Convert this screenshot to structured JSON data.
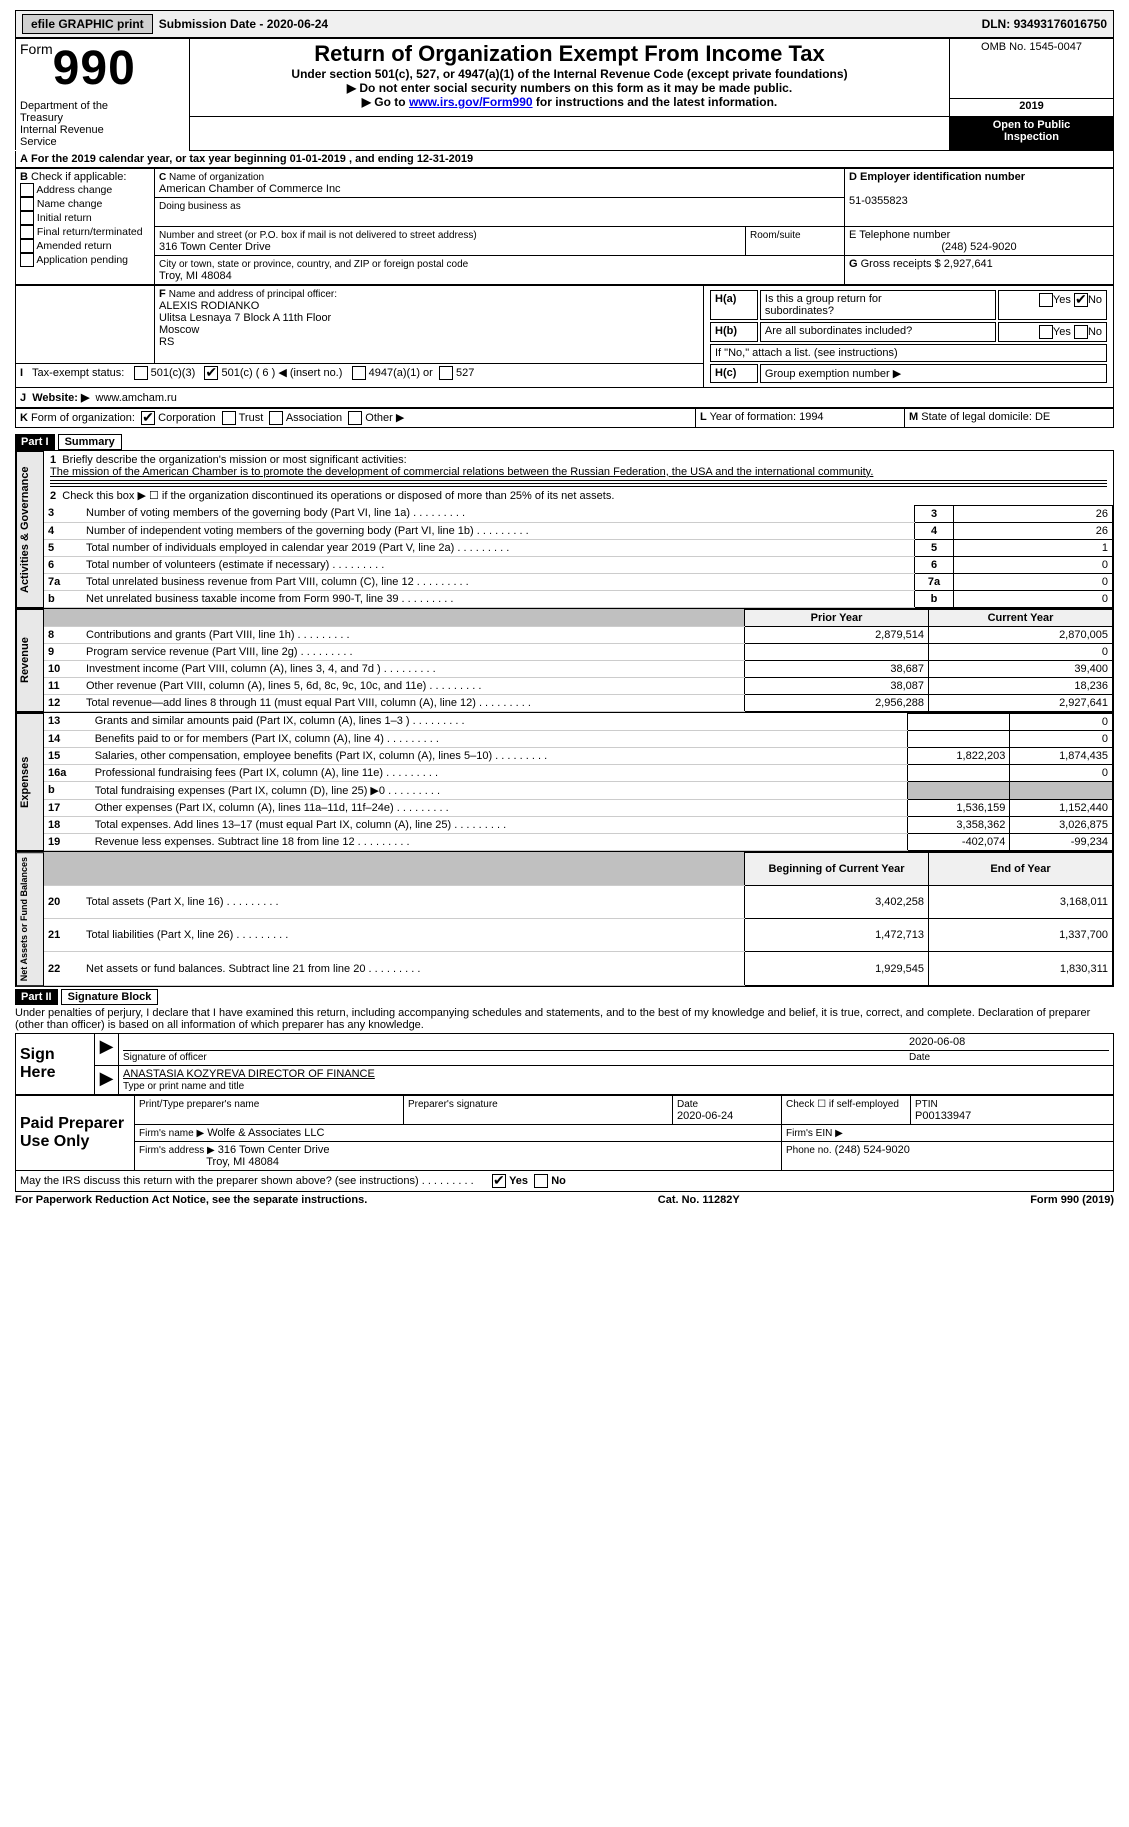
{
  "topbar": {
    "efile": "efile GRAPHIC print",
    "submission_label": "Submission Date - ",
    "submission_date": "2020-06-24",
    "dln_label": "DLN: ",
    "dln": "93493176016750"
  },
  "header": {
    "form_word": "Form",
    "form_no": "990",
    "dept1": "Department of the",
    "dept2": "Treasury",
    "dept3": "Internal Revenue",
    "dept4": "Service",
    "title": "Return of Organization Exempt From Income Tax",
    "subtitle": "Under section 501(c), 527, or 4947(a)(1) of the Internal Revenue Code (except private foundations)",
    "line1": "Do not enter social security numbers on this form as it may be made public.",
    "line2_pre": "Go to ",
    "line2_link": "www.irs.gov/Form990",
    "line2_post": " for instructions and the latest information.",
    "omb": "OMB No. 1545-0047",
    "year": "2019",
    "open1": "Open to Public",
    "open2": "Inspection"
  },
  "periodA": {
    "pre": "For the 2019 calendar year, or tax year beginning ",
    "begin": "01-01-2019",
    "mid": " , and ending ",
    "end": "12-31-2019"
  },
  "boxB": {
    "label": "Check if applicable:",
    "items": [
      "Address change",
      "Name change",
      "Initial return",
      "Final return/terminated",
      "Amended return",
      "Application pending"
    ]
  },
  "boxC": {
    "name_label": "Name of organization",
    "name": "American Chamber of Commerce Inc",
    "dba_label": "Doing business as",
    "street_label": "Number and street (or P.O. box if mail is not delivered to street address)",
    "street": "316 Town Center Drive",
    "room_label": "Room/suite",
    "city_label": "City or town, state or province, country, and ZIP or foreign postal code",
    "city": "Troy, MI  48084"
  },
  "boxD": {
    "label": "Employer identification number",
    "value": "51-0355823"
  },
  "boxE": {
    "label": "E Telephone number",
    "value": "(248) 524-9020"
  },
  "boxG": {
    "label": "Gross receipts $",
    "value": "2,927,641"
  },
  "boxF": {
    "label": "Name and address of principal officer:",
    "l1": "ALEXIS RODIANKO",
    "l2": "Ulitsa Lesnaya 7 Block A 11th Floor",
    "l3": "Moscow",
    "l4": "RS"
  },
  "boxH": {
    "a": "Is this a group return for",
    "a2": "subordinates?",
    "b": "Are all subordinates included?",
    "note": "If \"No,\" attach a list. (see instructions)",
    "c": "Group exemption number ▶"
  },
  "boxI": {
    "label": "Tax-exempt status:",
    "o1": "501(c)(3)",
    "o2": "501(c) ( 6 ) ◀ (insert no.)",
    "o3": "4947(a)(1) or",
    "o4": "527"
  },
  "boxJ": {
    "label": "Website: ▶",
    "value": "www.amcham.ru"
  },
  "boxK": {
    "label": "Form of organization:",
    "o1": "Corporation",
    "o2": "Trust",
    "o3": "Association",
    "o4": "Other ▶"
  },
  "boxL": {
    "label": "Year of formation:",
    "value": "1994"
  },
  "boxM": {
    "label": "State of legal domicile:",
    "value": "DE"
  },
  "part1": {
    "bar": "Part I",
    "title": "Summary",
    "l1": "Briefly describe the organization's mission or most significant activities:",
    "mission": "The mission of the American Chamber is to promote the development of commercial relations between the Russian Federation, the USA and the international community.",
    "l2": "Check this box ▶ ☐  if the organization discontinued its operations or disposed of more than 25% of its net assets.",
    "rows_top": [
      {
        "n": "3",
        "t": "Number of voting members of the governing body (Part VI, line 1a)",
        "v": "26"
      },
      {
        "n": "4",
        "t": "Number of independent voting members of the governing body (Part VI, line 1b)",
        "v": "26"
      },
      {
        "n": "5",
        "t": "Total number of individuals employed in calendar year 2019 (Part V, line 2a)",
        "v": "1"
      },
      {
        "n": "6",
        "t": "Total number of volunteers (estimate if necessary)",
        "v": "0"
      },
      {
        "n": "7a",
        "t": "Total unrelated business revenue from Part VIII, column (C), line 12",
        "v": "0"
      },
      {
        "n": "b",
        "t": "Net unrelated business taxable income from Form 990-T, line 39",
        "v": "0"
      }
    ],
    "col_prior": "Prior Year",
    "col_curr": "Current Year",
    "col_begin": "Beginning of Current Year",
    "col_end": "End of Year",
    "sideA": "Activities & Governance",
    "sideR": "Revenue",
    "sideE": "Expenses",
    "sideN": "Net Assets or Fund Balances",
    "revenue": [
      {
        "n": "8",
        "t": "Contributions and grants (Part VIII, line 1h)",
        "p": "2,879,514",
        "c": "2,870,005"
      },
      {
        "n": "9",
        "t": "Program service revenue (Part VIII, line 2g)",
        "p": "",
        "c": "0"
      },
      {
        "n": "10",
        "t": "Investment income (Part VIII, column (A), lines 3, 4, and 7d )",
        "p": "38,687",
        "c": "39,400"
      },
      {
        "n": "11",
        "t": "Other revenue (Part VIII, column (A), lines 5, 6d, 8c, 9c, 10c, and 11e)",
        "p": "38,087",
        "c": "18,236"
      },
      {
        "n": "12",
        "t": "Total revenue—add lines 8 through 11 (must equal Part VIII, column (A), line 12)",
        "p": "2,956,288",
        "c": "2,927,641"
      }
    ],
    "expenses": [
      {
        "n": "13",
        "t": "Grants and similar amounts paid (Part IX, column (A), lines 1–3 )",
        "p": "",
        "c": "0"
      },
      {
        "n": "14",
        "t": "Benefits paid to or for members (Part IX, column (A), line 4)",
        "p": "",
        "c": "0"
      },
      {
        "n": "15",
        "t": "Salaries, other compensation, employee benefits (Part IX, column (A), lines 5–10)",
        "p": "1,822,203",
        "c": "1,874,435"
      },
      {
        "n": "16a",
        "t": "Professional fundraising fees (Part IX, column (A), line 11e)",
        "p": "",
        "c": "0"
      },
      {
        "n": "b",
        "t": "Total fundraising expenses (Part IX, column (D), line 25) ▶0",
        "p": "GREY",
        "c": "GREY"
      },
      {
        "n": "17",
        "t": "Other expenses (Part IX, column (A), lines 11a–11d, 11f–24e)",
        "p": "1,536,159",
        "c": "1,152,440"
      },
      {
        "n": "18",
        "t": "Total expenses. Add lines 13–17 (must equal Part IX, column (A), line 25)",
        "p": "3,358,362",
        "c": "3,026,875"
      },
      {
        "n": "19",
        "t": "Revenue less expenses. Subtract line 18 from line 12",
        "p": "-402,074",
        "c": "-99,234"
      }
    ],
    "netassets": [
      {
        "n": "20",
        "t": "Total assets (Part X, line 16)",
        "p": "3,402,258",
        "c": "3,168,011"
      },
      {
        "n": "21",
        "t": "Total liabilities (Part X, line 26)",
        "p": "1,472,713",
        "c": "1,337,700"
      },
      {
        "n": "22",
        "t": "Net assets or fund balances. Subtract line 21 from line 20",
        "p": "1,929,545",
        "c": "1,830,311"
      }
    ]
  },
  "part2": {
    "bar": "Part II",
    "title": "Signature Block",
    "decl": "Under penalties of perjury, I declare that I have examined this return, including accompanying schedules and statements, and to the best of my knowledge and belief, it is true, correct, and complete. Declaration of preparer (other than officer) is based on all information of which preparer has any knowledge.",
    "sign_here": "Sign Here",
    "sig_officer": "Signature of officer",
    "sig_date": "Date",
    "sig_date_val": "2020-06-08",
    "name_title": "ANASTASIA KOZYREVA  DIRECTOR OF FINANCE",
    "name_title_label": "Type or print name and title",
    "paid": "Paid Preparer Use Only",
    "prep_name_label": "Print/Type preparer's name",
    "prep_sig_label": "Preparer's signature",
    "prep_date_label": "Date",
    "prep_date": "2020-06-24",
    "self_emp": "Check ☐ if self-employed",
    "ptin_label": "PTIN",
    "ptin": "P00133947",
    "firm_name_label": "Firm's name   ▶",
    "firm_name": "Wolfe & Associates LLC",
    "firm_ein_label": "Firm's EIN ▶",
    "firm_addr_label": "Firm's address ▶",
    "firm_addr1": "316 Town Center Drive",
    "firm_addr2": "Troy, MI  48084",
    "firm_phone_label": "Phone no.",
    "firm_phone": "(248) 524-9020",
    "discuss": "May the IRS discuss this return with the preparer shown above? (see instructions)",
    "yes": "Yes",
    "no": "No"
  },
  "footer": {
    "left": "For Paperwork Reduction Act Notice, see the separate instructions.",
    "mid": "Cat. No. 11282Y",
    "right": "Form 990 (2019)"
  }
}
